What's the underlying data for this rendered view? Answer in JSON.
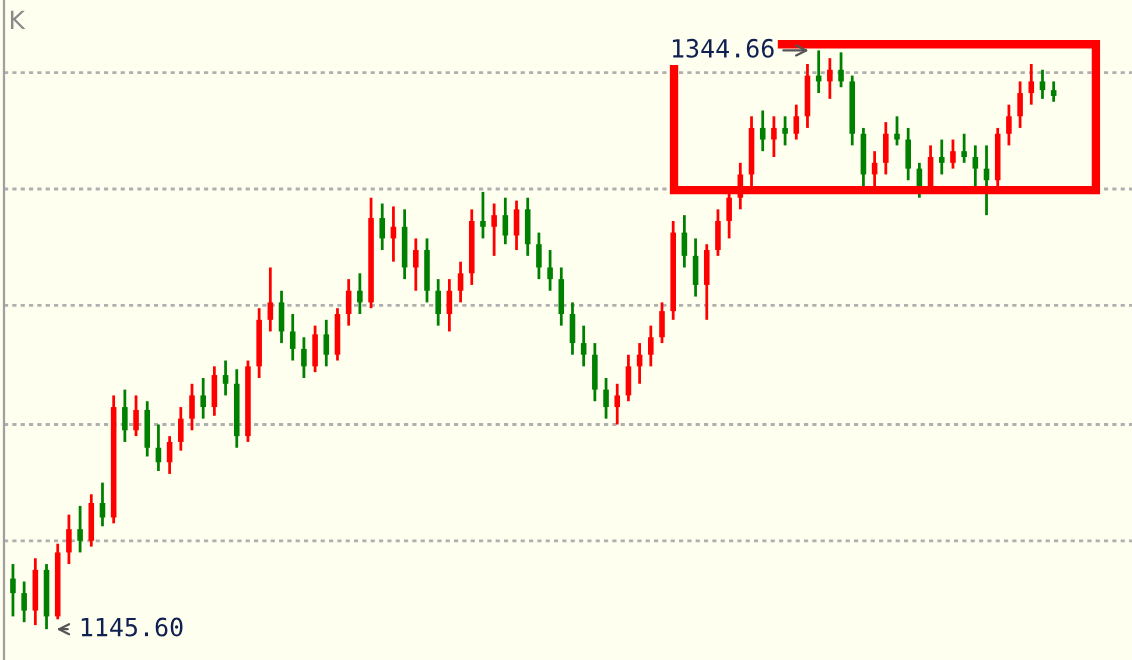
{
  "chart_data": {
    "type": "candlestick",
    "title": "K",
    "categories": [
      null,
      null,
      null,
      null,
      null,
      null,
      null,
      null,
      null,
      null,
      null,
      null,
      null,
      null,
      null,
      null,
      null,
      null,
      null,
      null,
      null,
      null,
      null,
      null,
      null,
      null,
      null,
      null,
      null,
      null,
      null,
      null,
      null,
      null,
      null,
      null,
      null,
      null,
      null,
      null,
      null,
      null,
      null,
      null,
      null,
      null,
      null,
      null,
      null,
      null,
      null,
      null,
      null,
      null,
      null,
      null,
      null,
      null,
      null,
      null,
      null,
      null,
      null,
      null,
      null,
      null,
      null,
      null,
      null,
      null,
      null,
      null,
      null,
      null,
      null,
      null,
      null,
      null,
      null,
      null,
      null,
      null,
      null,
      null,
      null,
      null,
      null,
      null,
      null,
      null,
      null,
      null,
      null,
      null
    ],
    "ohlc": [
      [
        1163,
        1168,
        1150,
        1158
      ],
      [
        1158,
        1162,
        1148,
        1152
      ],
      [
        1152,
        1170,
        1147,
        1166
      ],
      [
        1166,
        1168,
        1145.6,
        1150
      ],
      [
        1150,
        1175,
        1149,
        1172
      ],
      [
        1172,
        1185,
        1168,
        1180
      ],
      [
        1180,
        1188,
        1172,
        1176
      ],
      [
        1176,
        1192,
        1174,
        1189
      ],
      [
        1189,
        1196,
        1181,
        1184
      ],
      [
        1184,
        1226,
        1182,
        1222
      ],
      [
        1222,
        1228,
        1210,
        1214
      ],
      [
        1214,
        1226,
        1212,
        1221
      ],
      [
        1221,
        1224,
        1205,
        1208
      ],
      [
        1208,
        1216,
        1200,
        1203
      ],
      [
        1203,
        1212,
        1199,
        1210
      ],
      [
        1210,
        1222,
        1207,
        1218
      ],
      [
        1218,
        1230,
        1214,
        1226
      ],
      [
        1226,
        1232,
        1218,
        1222
      ],
      [
        1222,
        1236,
        1219,
        1233
      ],
      [
        1233,
        1238,
        1226,
        1230
      ],
      [
        1230,
        1235,
        1208,
        1212
      ],
      [
        1212,
        1238,
        1210,
        1236
      ],
      [
        1236,
        1256,
        1232,
        1252
      ],
      [
        1252,
        1270,
        1248,
        1258
      ],
      [
        1258,
        1262,
        1244,
        1248
      ],
      [
        1248,
        1254,
        1238,
        1242
      ],
      [
        1242,
        1246,
        1232,
        1236
      ],
      [
        1236,
        1250,
        1234,
        1247
      ],
      [
        1247,
        1252,
        1236,
        1240
      ],
      [
        1240,
        1256,
        1238,
        1254
      ],
      [
        1254,
        1266,
        1250,
        1262
      ],
      [
        1262,
        1268,
        1254,
        1258
      ],
      [
        1258,
        1294,
        1256,
        1287
      ],
      [
        1287,
        1292,
        1276,
        1280
      ],
      [
        1280,
        1291,
        1272,
        1284
      ],
      [
        1284,
        1290,
        1266,
        1270
      ],
      [
        1270,
        1280,
        1262,
        1276
      ],
      [
        1276,
        1280,
        1258,
        1262
      ],
      [
        1262,
        1266,
        1250,
        1254
      ],
      [
        1254,
        1266,
        1248,
        1262
      ],
      [
        1262,
        1272,
        1258,
        1268
      ],
      [
        1268,
        1290,
        1264,
        1286
      ],
      [
        1286,
        1296,
        1280,
        1284
      ],
      [
        1284,
        1292,
        1274,
        1288
      ],
      [
        1288,
        1294,
        1278,
        1281
      ],
      [
        1281,
        1293,
        1276,
        1290
      ],
      [
        1290,
        1294,
        1274,
        1278
      ],
      [
        1278,
        1282,
        1266,
        1270
      ],
      [
        1270,
        1276,
        1262,
        1266
      ],
      [
        1266,
        1270,
        1250,
        1254
      ],
      [
        1254,
        1258,
        1240,
        1244
      ],
      [
        1244,
        1250,
        1236,
        1240
      ],
      [
        1240,
        1244,
        1224,
        1228
      ],
      [
        1228,
        1232,
        1218,
        1222
      ],
      [
        1222,
        1230,
        1216,
        1226
      ],
      [
        1226,
        1240,
        1224,
        1236
      ],
      [
        1236,
        1244,
        1230,
        1240
      ],
      [
        1240,
        1250,
        1236,
        1246
      ],
      [
        1246,
        1258,
        1244,
        1255
      ],
      [
        1255,
        1286,
        1252,
        1282
      ],
      [
        1282,
        1288,
        1270,
        1274
      ],
      [
        1274,
        1280,
        1260,
        1264
      ],
      [
        1264,
        1278,
        1252,
        1276
      ],
      [
        1276,
        1290,
        1274,
        1286
      ],
      [
        1286,
        1298,
        1280,
        1294
      ],
      [
        1294,
        1306,
        1290,
        1302
      ],
      [
        1302,
        1322,
        1298,
        1318
      ],
      [
        1318,
        1324,
        1310,
        1314
      ],
      [
        1314,
        1322,
        1308,
        1318
      ],
      [
        1318,
        1322,
        1312,
        1316
      ],
      [
        1316,
        1326,
        1314,
        1322
      ],
      [
        1322,
        1340,
        1318,
        1336
      ],
      [
        1336,
        1344.66,
        1330,
        1334
      ],
      [
        1334,
        1342,
        1328,
        1338
      ],
      [
        1338,
        1344,
        1332,
        1334
      ],
      [
        1334,
        1336,
        1312,
        1316
      ],
      [
        1316,
        1318,
        1298,
        1302
      ],
      [
        1302,
        1310,
        1298,
        1306
      ],
      [
        1306,
        1320,
        1302,
        1316
      ],
      [
        1316,
        1322,
        1312,
        1314
      ],
      [
        1314,
        1318,
        1300,
        1304
      ],
      [
        1304,
        1306,
        1294,
        1298
      ],
      [
        1298,
        1312,
        1296,
        1308
      ],
      [
        1308,
        1314,
        1302,
        1306
      ],
      [
        1306,
        1314,
        1304,
        1310
      ],
      [
        1310,
        1316,
        1306,
        1308
      ],
      [
        1308,
        1312,
        1298,
        1304
      ],
      [
        1304,
        1312,
        1288,
        1300
      ],
      [
        1300,
        1318,
        1298,
        1316
      ],
      [
        1316,
        1326,
        1312,
        1322
      ],
      [
        1322,
        1334,
        1318,
        1330
      ],
      [
        1330,
        1340,
        1326,
        1334
      ],
      [
        1334,
        1338,
        1328,
        1331
      ],
      [
        1331,
        1334,
        1327,
        1329
      ]
    ],
    "colors": [
      "#008000",
      "#008000",
      "#ff0000",
      "#008000",
      "#ff0000",
      "#ff0000",
      "#008000",
      "#ff0000",
      "#008000",
      "#ff0000",
      "#008000",
      "#ff0000",
      "#008000",
      "#008000",
      "#ff0000",
      "#ff0000",
      "#ff0000",
      "#008000",
      "#ff0000",
      "#008000",
      "#008000",
      "#ff0000",
      "#ff0000",
      "#ff0000",
      "#008000",
      "#008000",
      "#008000",
      "#ff0000",
      "#008000",
      "#ff0000",
      "#ff0000",
      "#008000",
      "#ff0000",
      "#008000",
      "#ff0000",
      "#008000",
      "#ff0000",
      "#008000",
      "#008000",
      "#ff0000",
      "#ff0000",
      "#ff0000",
      "#008000",
      "#ff0000",
      "#008000",
      "#ff0000",
      "#008000",
      "#008000",
      "#008000",
      "#008000",
      "#008000",
      "#008000",
      "#008000",
      "#008000",
      "#ff0000",
      "#ff0000",
      "#ff0000",
      "#ff0000",
      "#ff0000",
      "#ff0000",
      "#008000",
      "#008000",
      "#ff0000",
      "#ff0000",
      "#ff0000",
      "#ff0000",
      "#ff0000",
      "#008000",
      "#ff0000",
      "#008000",
      "#ff0000",
      "#ff0000",
      "#008000",
      "#ff0000",
      "#008000",
      "#008000",
      "#008000",
      "#ff0000",
      "#ff0000",
      "#008000",
      "#008000",
      "#008000",
      "#ff0000",
      "#008000",
      "#ff0000",
      "#008000",
      "#008000",
      "#008000",
      "#ff0000",
      "#ff0000",
      "#ff0000",
      "#ff0000",
      "#008000",
      "#008000"
    ],
    "ylim": [
      1135,
      1362
    ],
    "yticks": [
      {
        "value": 1176,
        "label": null
      },
      {
        "value": 1216,
        "label": null
      },
      {
        "value": 1257,
        "label": null
      },
      {
        "value": 1297,
        "label": null
      },
      {
        "value": 1337,
        "label": null
      }
    ],
    "grid": "y",
    "annotations": [
      "1344.66",
      "1145.60"
    ]
  }
}
